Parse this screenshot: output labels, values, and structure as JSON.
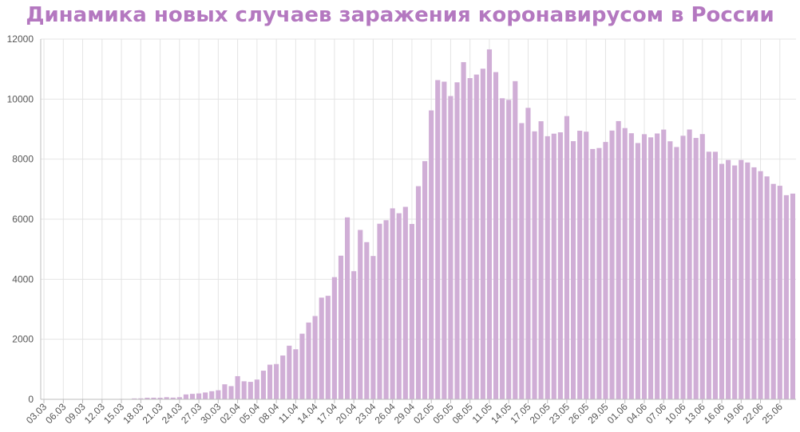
{
  "chart_data": {
    "type": "bar",
    "title": "Динамика новых случаев заражения коронавирусом в России",
    "xlabel": "",
    "ylabel": "",
    "ylim": [
      0,
      12000
    ],
    "yticks": [
      0,
      2000,
      4000,
      6000,
      8000,
      10000,
      12000
    ],
    "grid": true,
    "categories": [
      "03.03",
      "04.03",
      "05.03",
      "06.03",
      "07.03",
      "08.03",
      "09.03",
      "10.03",
      "11.03",
      "12.03",
      "13.03",
      "14.03",
      "15.03",
      "16.03",
      "17.03",
      "18.03",
      "19.03",
      "20.03",
      "21.03",
      "22.03",
      "23.03",
      "24.03",
      "25.03",
      "26.03",
      "27.03",
      "28.03",
      "29.03",
      "30.03",
      "31.03",
      "01.04",
      "02.04",
      "03.04",
      "04.04",
      "05.04",
      "06.04",
      "07.04",
      "08.04",
      "09.04",
      "10.04",
      "11.04",
      "12.04",
      "13.04",
      "14.04",
      "15.04",
      "16.04",
      "17.04",
      "18.04",
      "19.04",
      "20.04",
      "21.04",
      "22.04",
      "23.04",
      "24.04",
      "25.04",
      "26.04",
      "27.04",
      "28.04",
      "29.04",
      "30.04",
      "01.05",
      "02.05",
      "03.05",
      "04.05",
      "05.05",
      "06.05",
      "07.05",
      "08.05",
      "09.05",
      "10.05",
      "11.05",
      "12.05",
      "13.05",
      "14.05",
      "15.05",
      "16.05",
      "17.05",
      "18.05",
      "19.05",
      "20.05",
      "21.05",
      "22.05",
      "23.05",
      "24.05",
      "25.05",
      "26.05",
      "27.05",
      "28.05",
      "29.05",
      "30.05",
      "31.05",
      "01.06",
      "02.06",
      "03.06",
      "04.06",
      "05.06",
      "06.06",
      "07.06",
      "08.06",
      "09.06",
      "10.06",
      "11.06",
      "12.06",
      "13.06",
      "14.06",
      "15.06",
      "16.06",
      "17.06",
      "18.06",
      "19.06",
      "20.06",
      "21.06",
      "22.06",
      "23.06",
      "24.06",
      "25.06",
      "26.06",
      "27.06"
    ],
    "values": [
      1,
      0,
      1,
      1,
      0,
      1,
      2,
      3,
      8,
      6,
      0,
      11,
      15,
      4,
      30,
      33,
      52,
      54,
      53,
      71,
      57,
      71,
      163,
      182,
      196,
      228,
      270,
      302,
      500,
      440,
      771,
      601,
      582,
      658,
      954,
      1154,
      1175,
      1459,
      1786,
      1667,
      2186,
      2558,
      2774,
      3388,
      3448,
      4070,
      4785,
      6060,
      4268,
      5642,
      5236,
      4774,
      5849,
      5966,
      6361,
      6198,
      6411,
      5841,
      7099,
      7933,
      9623,
      10633,
      10581,
      10102,
      10559,
      11231,
      10699,
      10817,
      11012,
      11656,
      10899,
      10028,
      9974,
      10598,
      9200,
      9709,
      8926,
      9263,
      8764,
      8849,
      8894,
      9434,
      8599,
      8946,
      8915,
      8338,
      8371,
      8572,
      8952,
      9268,
      9035,
      8863,
      8536,
      8831,
      8726,
      8855,
      8985,
      8595,
      8404,
      8779,
      8987,
      8706,
      8835,
      8248,
      8246,
      7843,
      7972,
      7790,
      7972,
      7889,
      7728,
      7600,
      7425,
      7176,
      7113,
      6800,
      6852
    ],
    "x_tick_labels": [
      "03.03",
      "06.03",
      "09.03",
      "12.03",
      "15.03",
      "18.03",
      "21.03",
      "24.03",
      "27.03",
      "30.03",
      "02.04",
      "05.04",
      "08.04",
      "11.04",
      "14.04",
      "17.04",
      "20.04",
      "23.04",
      "26.04",
      "29.04",
      "02.05",
      "05.05",
      "08.05",
      "11.05",
      "14.05",
      "17.05",
      "20.05",
      "23.05",
      "26.05",
      "29.05",
      "01.06",
      "04.06",
      "07.06",
      "10.06",
      "13.06",
      "16.06",
      "19.06",
      "22.06",
      "25.06"
    ],
    "colors": {
      "bar": "#d0aed6",
      "title": "#b478c0",
      "grid": "#e4e4e4",
      "axis": "#bdbdbd"
    }
  }
}
